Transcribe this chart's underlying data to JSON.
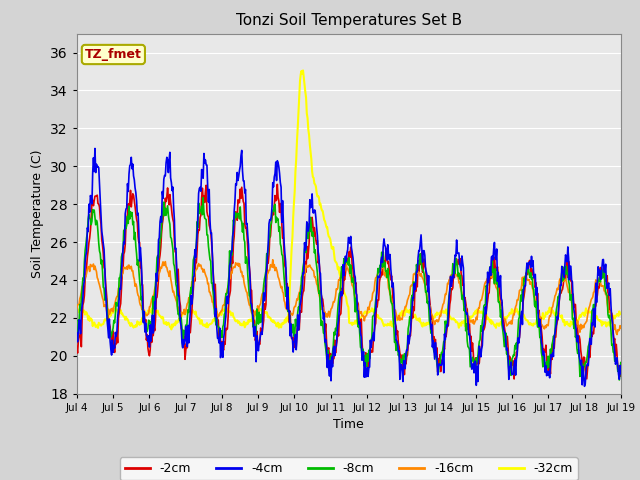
{
  "title": "Tonzi Soil Temperatures Set B",
  "xlabel": "Time",
  "ylabel": "Soil Temperature (C)",
  "ylim": [
    18,
    37
  ],
  "xlim": [
    0,
    360
  ],
  "fig_facecolor": "#d4d4d4",
  "plot_facecolor": "#e8e8e8",
  "annotation_text": "TZ_fmet",
  "annotation_bg": "#ffffcc",
  "annotation_border": "#aaaa00",
  "annotation_text_color": "#aa0000",
  "series_colors": {
    "-2cm": "#dd0000",
    "-4cm": "#0000ee",
    "-8cm": "#00bb00",
    "-16cm": "#ff8800",
    "-32cm": "#ffff00"
  },
  "tick_labels": [
    "Jul 4",
    "Jul 5",
    "Jul 6",
    "Jul 7",
    "Jul 8",
    "Jul 9",
    "Jul 10",
    "Jul 11",
    "Jul 12",
    "Jul 13",
    "Jul 14",
    "Jul 15",
    "Jul 16",
    "Jul 17",
    "Jul 18",
    "Jul 19"
  ],
  "tick_positions": [
    0,
    24,
    48,
    72,
    96,
    120,
    144,
    168,
    192,
    216,
    240,
    264,
    288,
    312,
    336,
    360
  ],
  "ytick_interval": 2,
  "grid_color": "#ffffff",
  "linewidth": 1.2,
  "n_points": 720
}
